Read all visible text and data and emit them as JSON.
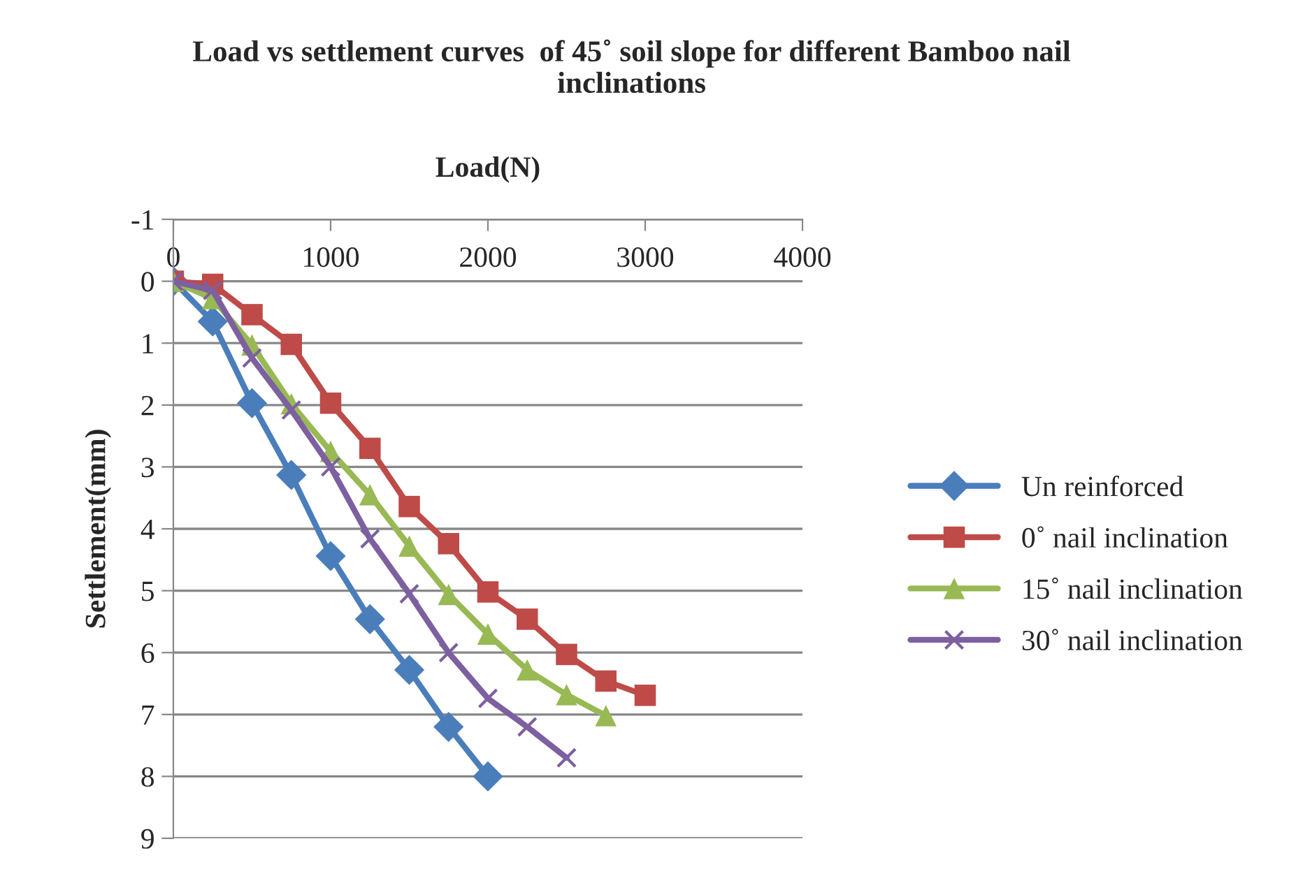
{
  "chart_data": {
    "type": "line",
    "title": "Load vs settlement curves  of 45˚ soil slope for different Bamboo nail inclinations",
    "xlabel": "Load(N)",
    "ylabel": "Settlement(mm)",
    "xlim": [
      0,
      4000
    ],
    "xticks": [
      0,
      1000,
      2000,
      3000,
      4000
    ],
    "ylim": [
      9,
      -1
    ],
    "yticks": [
      -1,
      0,
      1,
      2,
      3,
      4,
      5,
      6,
      7,
      8,
      9
    ],
    "grid": "y",
    "legend": "right",
    "series": [
      {
        "name": "Un reinforced",
        "color": "#4a7ebb",
        "marker": "diamond",
        "x": [
          0,
          250,
          500,
          750,
          1000,
          1250,
          1500,
          1750,
          2000
        ],
        "values": [
          0,
          0.65,
          1.97,
          3.13,
          4.44,
          5.46,
          6.28,
          7.2,
          8.0
        ]
      },
      {
        "name": "0˚ nail inclination",
        "color": "#be4b48",
        "marker": "square",
        "x": [
          0,
          250,
          500,
          750,
          1000,
          1250,
          1500,
          1750,
          2000,
          2250,
          2500,
          2750,
          3000
        ],
        "values": [
          0,
          0.05,
          0.54,
          1.02,
          1.97,
          2.7,
          3.64,
          4.24,
          5.02,
          5.46,
          6.03,
          6.46,
          6.69
        ]
      },
      {
        "name": "15˚ nail inclination",
        "color": "#98b954",
        "marker": "triangle",
        "x": [
          0,
          250,
          500,
          750,
          1000,
          1250,
          1500,
          1750,
          2000,
          2250,
          2500,
          2750
        ],
        "values": [
          0,
          0.28,
          1.03,
          1.98,
          2.75,
          3.45,
          4.28,
          5.06,
          5.7,
          6.28,
          6.68,
          7.02
        ]
      },
      {
        "name": "30˚ nail inclination",
        "color": "#7d60a0",
        "marker": "cross",
        "x": [
          0,
          250,
          500,
          750,
          1000,
          1250,
          1500,
          1750,
          2000,
          2250,
          2500
        ],
        "values": [
          0,
          0.15,
          1.24,
          2.08,
          3.0,
          4.16,
          5.05,
          6.0,
          6.74,
          7.2,
          7.7
        ]
      }
    ]
  }
}
